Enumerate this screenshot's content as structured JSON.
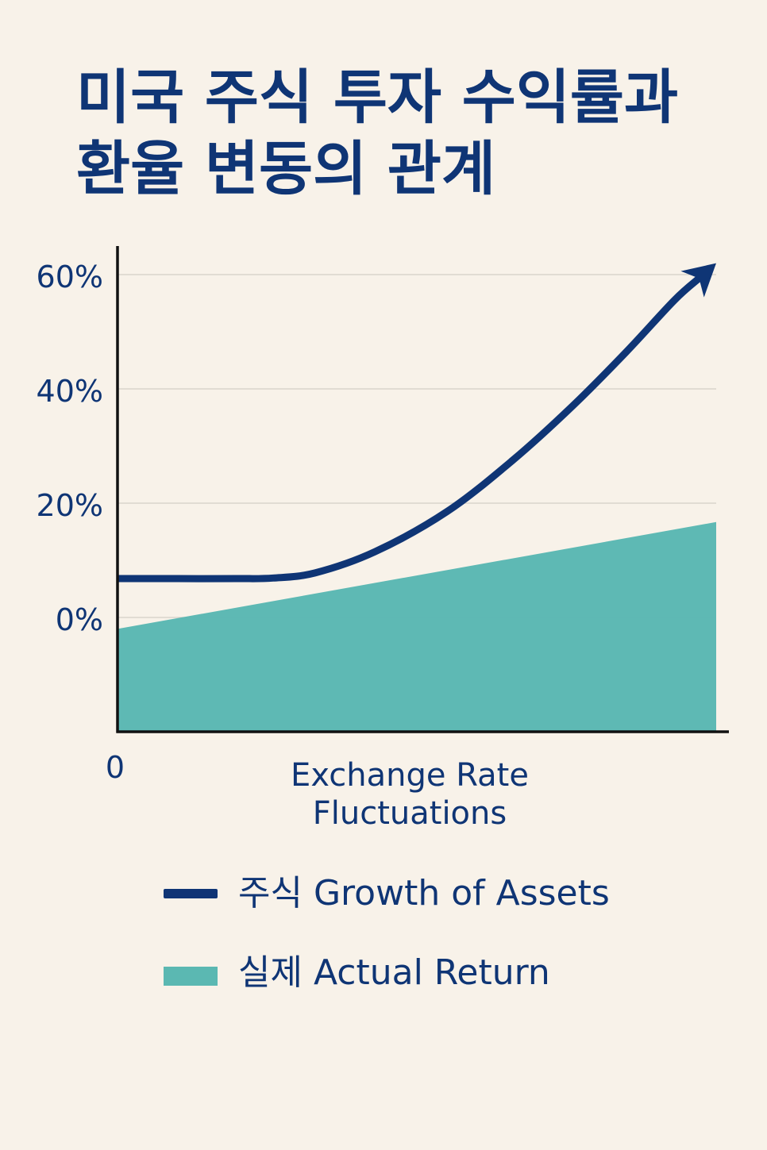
{
  "title": {
    "line1": "미국 주식 투자 수익률과",
    "line2": "환율 변동의 관계"
  },
  "colors": {
    "navy": "#0f3575",
    "teal": "#5bb8b2",
    "background": "#f8f2e9",
    "grid": "#d9d4cc"
  },
  "chart_data": {
    "type": "area",
    "title": "미국 주식 투자 수익률과 환율 변동의 관계",
    "xlabel_lines": [
      "Exchange Rate",
      "Fluctuations"
    ],
    "x_origin_label": "0",
    "ylabel": "",
    "y_ticks": [
      "0%",
      "20%",
      "40%",
      "60%"
    ],
    "y_tick_values": [
      0,
      20,
      40,
      60
    ],
    "ylim": [
      -20,
      65
    ],
    "xlim": [
      0,
      10
    ],
    "grid": true,
    "legend_placement": "bottom",
    "series": [
      {
        "name": "주식 Growth of Assets",
        "type": "line",
        "arrow_end": true,
        "color": "#0f3575",
        "x": [
          0,
          1,
          2,
          2.6,
          3.3,
          4.3,
          5.5,
          6.6,
          7.6,
          8.5,
          9.3,
          10
        ],
        "y": [
          6.8,
          6.8,
          6.8,
          6.9,
          7.8,
          11.5,
          18.5,
          27.5,
          37,
          46.5,
          55.5,
          62
        ]
      },
      {
        "name": "실제 Actual Return",
        "type": "area",
        "color": "#5bb8b2",
        "x": [
          0,
          10
        ],
        "y": [
          -2,
          16.7
        ]
      }
    ]
  },
  "legend": {
    "items": [
      {
        "label": "주식 Growth of Assets"
      },
      {
        "label": "실제 Actual Return"
      }
    ]
  }
}
